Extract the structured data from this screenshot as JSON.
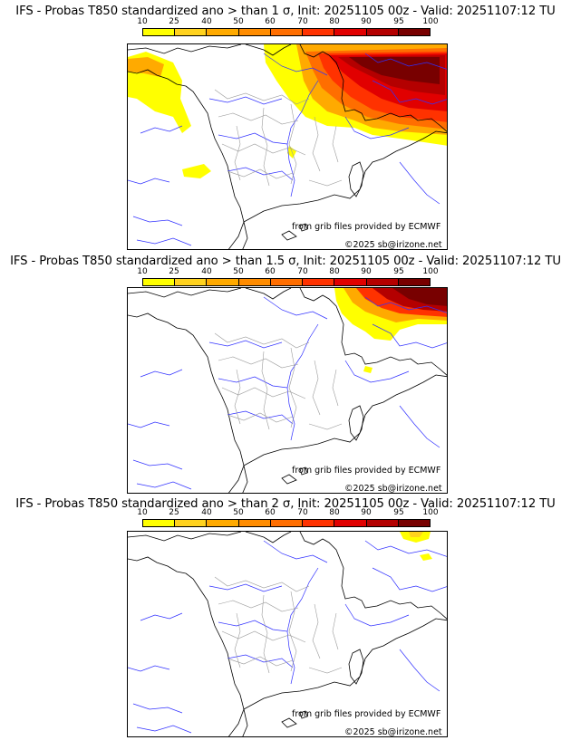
{
  "legend": {
    "ticks": [
      "10",
      "25",
      "40",
      "50",
      "60",
      "70",
      "80",
      "90",
      "95",
      "100"
    ],
    "colors": [
      "#ffff00",
      "#ffd21e",
      "#ffaa00",
      "#ff8c00",
      "#ff6e00",
      "#ff3200",
      "#e10000",
      "#b40000",
      "#780000"
    ]
  },
  "panels": [
    {
      "title": "IFS - Probas T850  standardized ano > than 1 σ, Init: 20251105 00z - Valid: 20251107:12 TU",
      "credit": "from grib files provided by ECMWF",
      "copyright": "©2025 sb@irizone.net"
    },
    {
      "title": "IFS - Probas T850  standardized ano > than 1.5 σ, Init: 20251105 00z - Valid: 20251107:12 TU",
      "credit": "from grib files provided by ECMWF",
      "copyright": "©2025 sb@irizone.net"
    },
    {
      "title": "IFS - Probas T850  standardized ano > than 2 σ, Init: 20251105 00z - Valid: 20251107:12 TU",
      "credit": "from grib files provided by ECMWF",
      "copyright": "©2025 sb@irizone.net"
    }
  ]
}
